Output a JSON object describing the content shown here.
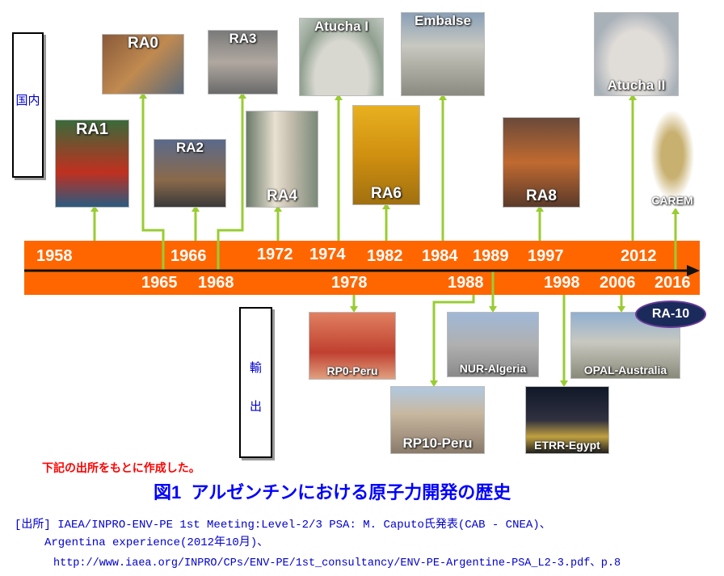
{
  "side": {
    "domestic": "国内",
    "export": "輸出"
  },
  "years_top": [
    "1958",
    "1966",
    "1972",
    "1974",
    "1982",
    "1984",
    "1989",
    "1997",
    "2012"
  ],
  "years_bottom": [
    "1965",
    "1968",
    "1978",
    "1988",
    "1998",
    "2006",
    "2016"
  ],
  "domestic": [
    {
      "label": "RA1"
    },
    {
      "label": "RA0"
    },
    {
      "label": "RA2"
    },
    {
      "label": "RA3"
    },
    {
      "label": "RA4"
    },
    {
      "label": "Atucha I"
    },
    {
      "label": "RA6"
    },
    {
      "label": "Embalse"
    },
    {
      "label": "RA8"
    },
    {
      "label": "Atucha II"
    },
    {
      "label": "CAREM"
    }
  ],
  "export": [
    {
      "label": "RP0-Peru"
    },
    {
      "label": "NUR-Algeria"
    },
    {
      "label": "RP10-Peru"
    },
    {
      "label": "OPAL-Australia"
    },
    {
      "label": "ETRR-Egypt"
    }
  ],
  "ra10": "RA-10",
  "note": "下記の出所をもとに作成した。",
  "title": "図1  アルゼンチンにおける原子力開発の歴史",
  "source": {
    "line1": "[出所] IAEA/INPRO-ENV-PE 1st Meeting:Level-2/3 PSA: M. Caputo氏発表(CAB - CNEA)、",
    "line2": "Argentina experience(2012年10月)、",
    "line3": "http://www.iaea.org/INPRO/CPs/ENV-PE/1st_consultancy/ENV-PE-Argentine-PSA_L2-3.pdf、p.8"
  },
  "colors": {
    "bar": "#ff6600",
    "connector": "#99cc33",
    "title": "#0000ff",
    "note": "#ff0000"
  }
}
